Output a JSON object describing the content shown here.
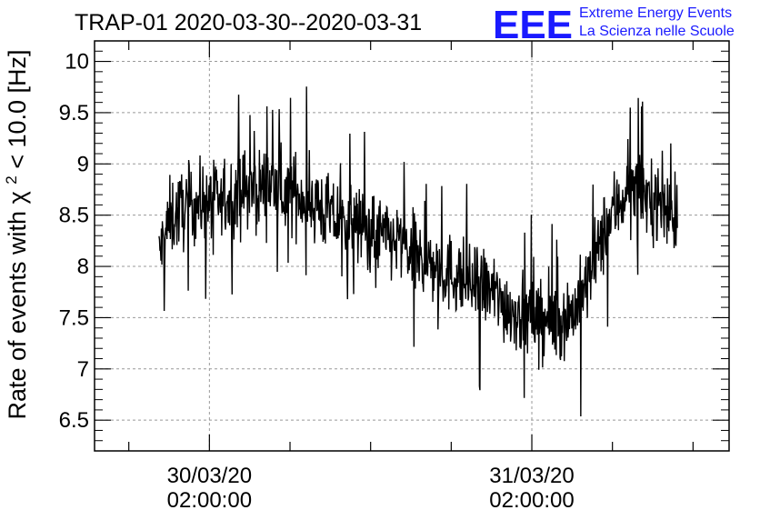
{
  "chart_data": {
    "type": "line",
    "title": "TRAP-01 2020-03-30--2020-03-31",
    "ylabel": "Rate of events with χ² < 10.0 [Hz]",
    "xlabel": "",
    "ylim": [
      6.2,
      10.2
    ],
    "yticks": [
      6.5,
      7,
      7.5,
      8,
      8.5,
      9,
      9.5,
      10
    ],
    "ytick_labels": [
      "6.5",
      "7",
      "7.5",
      "8",
      "8.5",
      "9",
      "9.5",
      "10"
    ],
    "xlim": [
      "2020-03-29T17:27:00",
      "2020-03-31T16:41:00"
    ],
    "xtick_labels": [
      {
        "at": "2020-03-30T02:00:00",
        "date": "30/03/20",
        "time": "02:00:00"
      },
      {
        "at": "2020-03-31T02:00:00",
        "date": "31/03/20",
        "time": "02:00:00"
      }
    ],
    "grid": true,
    "series": [
      {
        "x_start": "2020-03-29T22:15:00",
        "x_end": "2020-03-31T12:50:00",
        "values": [
          8.1,
          8.45,
          8.55,
          8.6,
          8.62,
          8.65,
          8.6,
          8.7,
          8.75,
          8.72,
          8.8,
          8.78,
          8.7,
          8.72,
          8.65,
          8.6,
          8.5,
          8.45,
          8.42,
          8.4,
          8.35,
          8.3,
          8.25,
          8.22,
          8.1,
          8.05,
          8.0,
          7.95,
          7.92,
          7.85,
          7.8,
          7.78,
          7.7,
          7.6,
          7.55,
          7.5,
          7.5,
          7.45,
          7.48,
          7.55,
          7.7,
          8.0,
          8.3,
          8.55,
          8.7,
          8.75,
          8.7,
          8.65,
          8.55,
          8.5
        ],
        "noise_amplitude": 0.35,
        "color": "#000000"
      }
    ]
  },
  "logo": {
    "mark": "EEE",
    "line1": "Extreme Energy Events",
    "line2": "La Scienza nelle Scuole",
    "color": "#1a1aff"
  }
}
